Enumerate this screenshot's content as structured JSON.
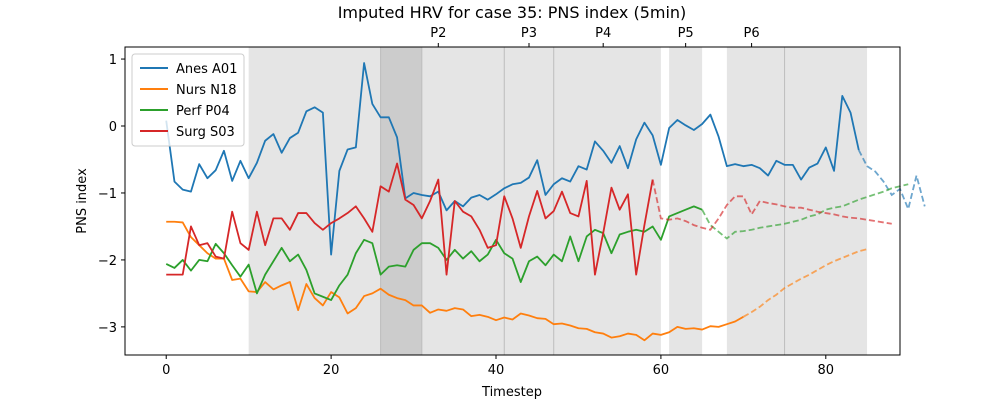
{
  "chart_data": {
    "type": "line",
    "title": "Imputed HRV for case 35: PNS index (5min)",
    "xlabel": "Timestep",
    "ylabel": "PNS index",
    "xlim": [
      -5,
      89
    ],
    "ylim": [
      -3.42,
      1.18
    ],
    "xticks": [
      0,
      20,
      40,
      60,
      80
    ],
    "yticks": [
      -3,
      -2,
      -1,
      0,
      1
    ],
    "grid": false,
    "legend_position": "top-left",
    "shaded_regions": [
      {
        "x0": 10,
        "x1": 26,
        "shade": "light"
      },
      {
        "x0": 26,
        "x1": 31,
        "shade": "dark"
      },
      {
        "x0": 31,
        "x1": 41,
        "shade": "light"
      },
      {
        "x0": 41,
        "x1": 47,
        "shade": "light"
      },
      {
        "x0": 47,
        "x1": 60,
        "shade": "light"
      },
      {
        "x0": 61,
        "x1": 65,
        "shade": "light"
      },
      {
        "x0": 68,
        "x1": 75,
        "shade": "light"
      },
      {
        "x0": 75,
        "x1": 85,
        "shade": "light"
      }
    ],
    "phase_labels": [
      {
        "label": "P2",
        "x": 33
      },
      {
        "label": "P3",
        "x": 44
      },
      {
        "label": "P4",
        "x": 53
      },
      {
        "label": "P5",
        "x": 63
      },
      {
        "label": "P6",
        "x": 71
      }
    ],
    "series": [
      {
        "name": "Anes A01",
        "color": "#1f77b4",
        "observed_x_max": 84,
        "values": [
          0.08,
          -0.83,
          -0.95,
          -0.98,
          -0.57,
          -0.78,
          -0.66,
          -0.37,
          -0.82,
          -0.52,
          -0.78,
          -0.55,
          -0.22,
          -0.12,
          -0.4,
          -0.18,
          -0.1,
          0.22,
          0.28,
          0.2,
          -1.92,
          -0.67,
          -0.35,
          -0.32,
          0.94,
          0.33,
          0.13,
          0.13,
          -0.17,
          -1.08,
          -1.0,
          -1.03,
          -1.05,
          -0.98,
          -1.26,
          -1.12,
          -1.2,
          -1.07,
          -1.03,
          -1.1,
          -1.02,
          -0.93,
          -0.87,
          -0.85,
          -0.77,
          -0.51,
          -1.03,
          -0.87,
          -0.78,
          -0.83,
          -0.6,
          -0.65,
          -0.23,
          -0.37,
          -0.55,
          -0.3,
          -0.63,
          -0.2,
          0.05,
          -0.14,
          -0.58,
          -0.03,
          0.09,
          0.01,
          -0.06,
          0.03,
          0.17,
          -0.16,
          -0.6,
          -0.57,
          -0.6,
          -0.58,
          -0.63,
          -0.74,
          -0.52,
          -0.58,
          -0.58,
          -0.8,
          -0.62,
          -0.56,
          -0.32,
          -0.67,
          0.45,
          0.2,
          -0.36,
          -0.6,
          -0.68,
          -0.83,
          -1.03,
          -0.94,
          -1.24,
          -0.74,
          -1.2
        ]
      },
      {
        "name": "Nurs N18",
        "color": "#ff7f0e",
        "observed_x_max": 70,
        "values": [
          -1.43,
          -1.43,
          -1.44,
          -1.66,
          -1.78,
          -1.9,
          -1.98,
          -1.98,
          -2.3,
          -2.28,
          -2.47,
          -2.48,
          -2.33,
          -2.44,
          -2.38,
          -2.33,
          -2.75,
          -2.36,
          -2.57,
          -2.68,
          -2.48,
          -2.56,
          -2.8,
          -2.72,
          -2.54,
          -2.5,
          -2.43,
          -2.52,
          -2.57,
          -2.6,
          -2.68,
          -2.68,
          -2.79,
          -2.74,
          -2.76,
          -2.72,
          -2.74,
          -2.84,
          -2.82,
          -2.85,
          -2.9,
          -2.86,
          -2.89,
          -2.8,
          -2.83,
          -2.87,
          -2.88,
          -2.96,
          -2.95,
          -2.98,
          -3.02,
          -3.03,
          -3.08,
          -3.1,
          -3.16,
          -3.14,
          -3.1,
          -3.12,
          -3.2,
          -3.1,
          -3.12,
          -3.08,
          -3.0,
          -3.03,
          -3.02,
          -3.04,
          -2.99,
          -3.0,
          -2.96,
          -2.92,
          -2.85,
          -2.78,
          -2.7,
          -2.6,
          -2.52,
          -2.42,
          -2.35,
          -2.28,
          -2.22,
          -2.15,
          -2.08,
          -2.02,
          -1.97,
          -1.92,
          -1.87,
          -1.84
        ]
      },
      {
        "name": "Perf P04",
        "color": "#2ca02c",
        "observed_x_max": 65,
        "values": [
          -2.06,
          -2.12,
          -2.0,
          -2.16,
          -2.0,
          -2.02,
          -1.76,
          -1.9,
          -2.08,
          -2.25,
          -2.07,
          -2.5,
          -2.22,
          -2.02,
          -1.82,
          -2.02,
          -1.92,
          -2.15,
          -2.5,
          -2.55,
          -2.6,
          -2.38,
          -2.22,
          -1.9,
          -1.7,
          -1.75,
          -2.22,
          -2.1,
          -2.08,
          -2.1,
          -1.85,
          -1.75,
          -1.75,
          -1.82,
          -2.0,
          -1.85,
          -1.98,
          -1.87,
          -2.02,
          -1.92,
          -1.7,
          -1.9,
          -1.98,
          -2.33,
          -2.02,
          -1.95,
          -2.08,
          -1.92,
          -2.02,
          -1.65,
          -2.02,
          -1.65,
          -1.55,
          -1.6,
          -1.9,
          -1.62,
          -1.58,
          -1.55,
          -1.58,
          -1.5,
          -1.7,
          -1.35,
          -1.3,
          -1.25,
          -1.2,
          -1.25,
          -1.48,
          -1.58,
          -1.68,
          -1.58,
          -1.57,
          -1.55,
          -1.52,
          -1.5,
          -1.48,
          -1.46,
          -1.43,
          -1.4,
          -1.35,
          -1.32,
          -1.25,
          -1.22,
          -1.2,
          -1.15,
          -1.1,
          -1.06,
          -1.02,
          -0.98,
          -0.93,
          -0.9,
          -0.87
        ]
      },
      {
        "name": "Surg S03",
        "color": "#d62728",
        "observed_x_max": 59,
        "values": [
          -2.22,
          -2.22,
          -2.22,
          -1.5,
          -1.78,
          -1.75,
          -1.95,
          -1.98,
          -1.28,
          -1.75,
          -1.85,
          -1.28,
          -1.78,
          -1.38,
          -1.38,
          -1.55,
          -1.3,
          -1.3,
          -1.45,
          -1.55,
          -1.45,
          -1.38,
          -1.3,
          -1.2,
          -1.38,
          -1.58,
          -0.9,
          -0.98,
          -0.56,
          -1.1,
          -1.18,
          -1.38,
          -1.12,
          -0.8,
          -2.22,
          -1.12,
          -1.28,
          -1.35,
          -1.55,
          -1.82,
          -1.78,
          -1.05,
          -1.38,
          -1.82,
          -1.35,
          -0.97,
          -1.38,
          -1.27,
          -0.98,
          -1.3,
          -1.35,
          -0.82,
          -2.22,
          -1.6,
          -0.92,
          -1.25,
          -1.02,
          -2.22,
          -1.48,
          -0.8,
          -1.38,
          -1.4,
          -1.38,
          -1.42,
          -1.48,
          -1.52,
          -1.55,
          -1.38,
          -1.18,
          -1.05,
          -1.05,
          -1.32,
          -1.12,
          -1.15,
          -1.17,
          -1.2,
          -1.22,
          -1.22,
          -1.25,
          -1.28,
          -1.3,
          -1.32,
          -1.35,
          -1.37,
          -1.38,
          -1.4,
          -1.42,
          -1.44,
          -1.46
        ]
      }
    ]
  }
}
